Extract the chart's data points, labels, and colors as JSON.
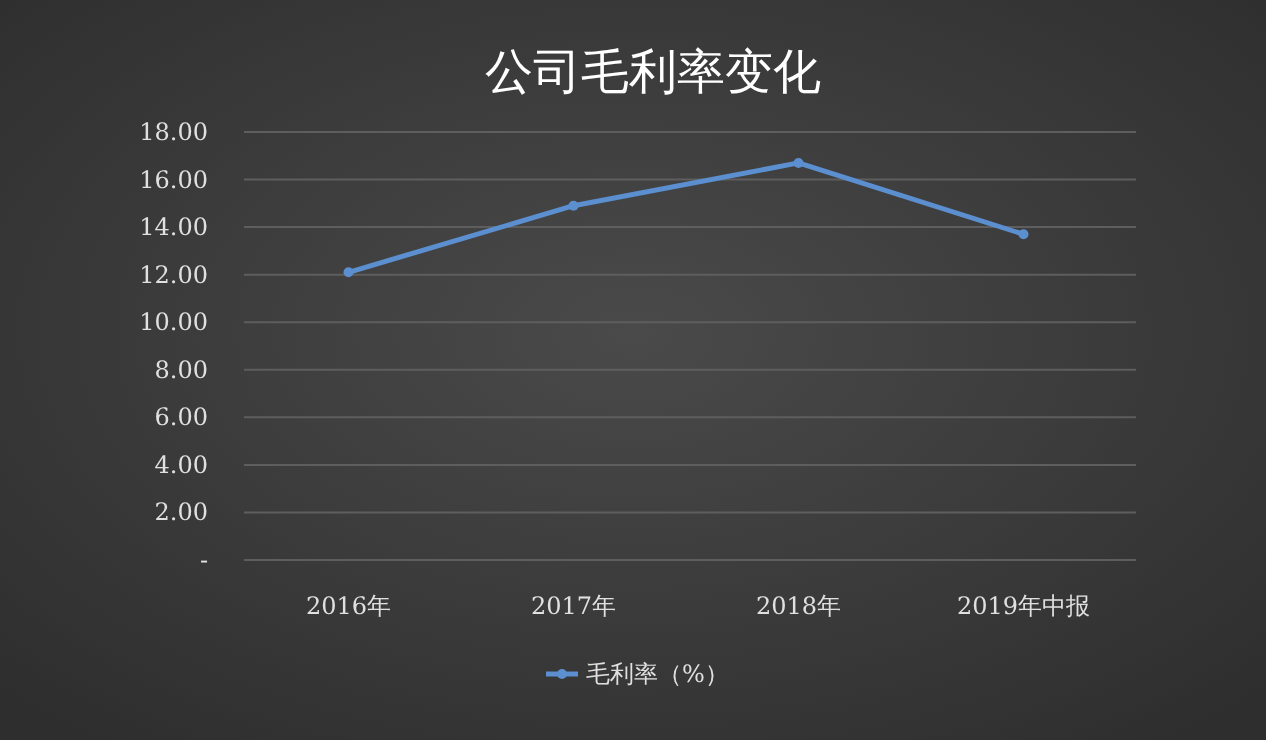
{
  "chart_data": {
    "type": "line",
    "title": "公司毛利率变化",
    "categories": [
      "2016年",
      "2017年",
      "2018年",
      "2019年中报"
    ],
    "series": [
      {
        "name": "毛利率（%）",
        "color": "#5b8fd0",
        "values": [
          12.1,
          14.9,
          16.7,
          13.7
        ]
      }
    ],
    "ylim": [
      0,
      18
    ],
    "yticks": [
      {
        "value": 0,
        "label": "-"
      },
      {
        "value": 2,
        "label": "2.00"
      },
      {
        "value": 4,
        "label": "4.00"
      },
      {
        "value": 6,
        "label": "6.00"
      },
      {
        "value": 8,
        "label": "8.00"
      },
      {
        "value": 10,
        "label": "10.00"
      },
      {
        "value": 12,
        "label": "12.00"
      },
      {
        "value": 14,
        "label": "14.00"
      },
      {
        "value": 16,
        "label": "16.00"
      },
      {
        "value": 18,
        "label": "18.00"
      }
    ],
    "grid": "y",
    "legend": "bottom",
    "marker": "circle",
    "line_style": "solid"
  }
}
